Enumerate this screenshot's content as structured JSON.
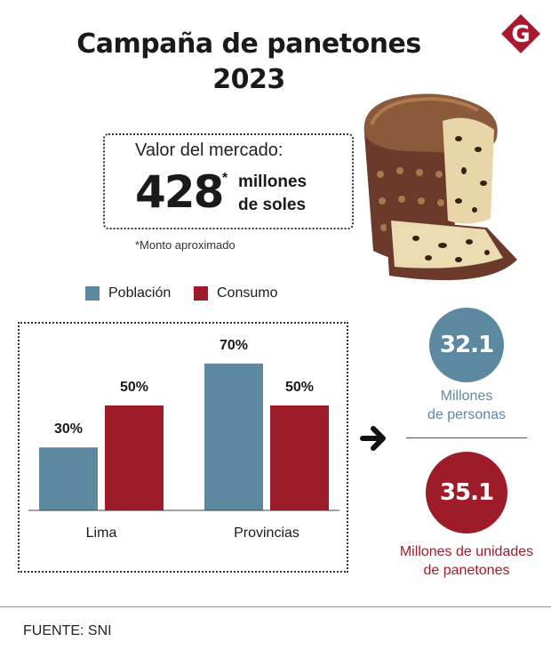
{
  "header": {
    "title_line1": "Campaña de panetones",
    "title_line2": "2023",
    "logo_letter": "G"
  },
  "market": {
    "label": "Valor del mercado:",
    "value": "428",
    "asterisk": "*",
    "unit_line1": "millones",
    "unit_line2": "de soles",
    "footnote": "*Monto aproximado"
  },
  "colors": {
    "poblacion": "#5d89a0",
    "consumo": "#9e1c2a",
    "logo": "#a8192e"
  },
  "chart_data": {
    "type": "bar",
    "categories": [
      "Lima",
      "Provincias"
    ],
    "series": [
      {
        "name": "Población",
        "values": [
          30,
          70
        ],
        "labels": [
          "30%",
          "70%"
        ]
      },
      {
        "name": "Consumo",
        "values": [
          50,
          50
        ],
        "labels": [
          "50%",
          "50%"
        ]
      }
    ],
    "ylim": [
      0,
      100
    ],
    "legend": "top-left",
    "grid": false
  },
  "stats": {
    "people_value": "32.1",
    "people_label_line1": "Millones",
    "people_label_line2": "de personas",
    "units_value": "35.1",
    "units_label_line1": "Millones de unidades",
    "units_label_line2": "de panetones"
  },
  "icons": {
    "arrow": "arrow-right-icon",
    "illustration": "paneton-illustration"
  },
  "footer": {
    "source": "FUENTE: SNI"
  }
}
